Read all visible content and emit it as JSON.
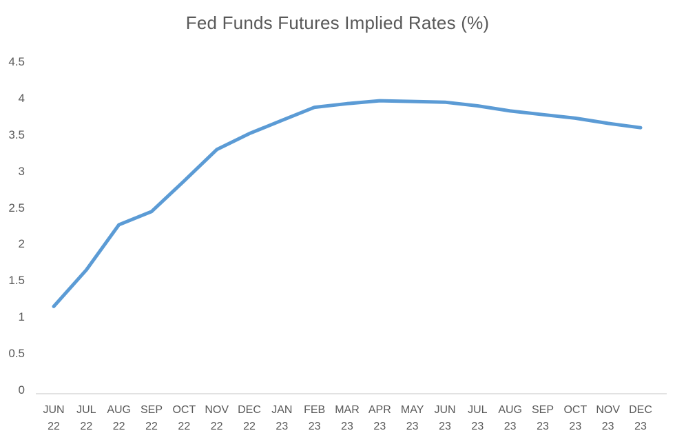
{
  "chart_data": {
    "type": "line",
    "title": "Fed Funds Futures Implied Rates (%)",
    "categories": [
      "JUN 22",
      "JUL 22",
      "AUG 22",
      "SEP 22",
      "OCT 22",
      "NOV 22",
      "DEC 22",
      "JAN 23",
      "FEB 23",
      "MAR 23",
      "APR 23",
      "MAY 23",
      "JUN 23",
      "JUL 23",
      "AUG 23",
      "SEP 23",
      "OCT 23",
      "NOV 23",
      "DEC 23"
    ],
    "values": [
      1.15,
      1.65,
      2.27,
      2.45,
      2.87,
      3.3,
      3.52,
      3.7,
      3.88,
      3.93,
      3.97,
      3.96,
      3.95,
      3.9,
      3.83,
      3.78,
      3.73,
      3.66,
      3.6
    ],
    "ylim": [
      0,
      4.5
    ],
    "yticks": [
      0,
      0.5,
      1,
      1.5,
      2,
      2.5,
      3,
      3.5,
      4,
      4.5
    ],
    "xlabel": "",
    "ylabel": "",
    "grid": false,
    "legend": false,
    "line_color": "#5B9BD5",
    "axis_line_color": "#D9D9D9",
    "text_color": "#595959"
  }
}
